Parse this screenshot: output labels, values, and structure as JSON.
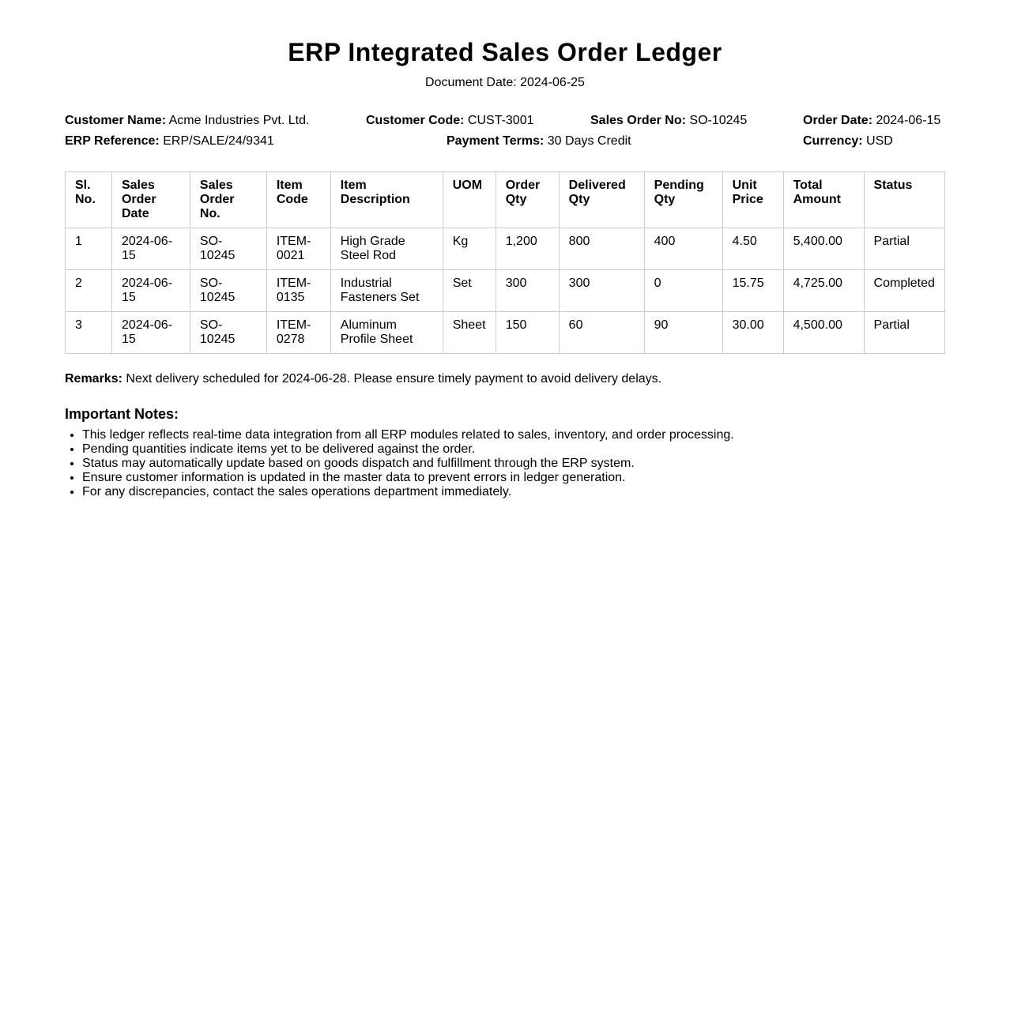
{
  "title": "ERP Integrated Sales Order Ledger",
  "document_date": "Document Date: 2024-06-25",
  "info": {
    "customer_name": {
      "label": "Customer Name:",
      "value": "Acme Industries Pvt. Ltd."
    },
    "customer_code": {
      "label": "Customer Code:",
      "value": "CUST-3001"
    },
    "sales_order_no": {
      "label": "Sales Order No:",
      "value": "SO-10245"
    },
    "order_date": {
      "label": "Order Date:",
      "value": "2024-06-15"
    },
    "erp_reference": {
      "label": "ERP Reference:",
      "value": "ERP/SALE/24/9341"
    },
    "payment_terms": {
      "label": "Payment Terms:",
      "value": "30 Days Credit"
    },
    "currency": {
      "label": "Currency:",
      "value": "USD"
    }
  },
  "table": {
    "headers": [
      "Sl. No.",
      "Sales Order Date",
      "Sales Order No.",
      "Item Code",
      "Item Description",
      "UOM",
      "Order Qty",
      "Delivered Qty",
      "Pending Qty",
      "Unit Price",
      "Total Amount",
      "Status"
    ],
    "rows": [
      [
        "1",
        "2024-06-15",
        "SO-10245",
        "ITEM-0021",
        "High Grade Steel Rod",
        "Kg",
        "1,200",
        "800",
        "400",
        "4.50",
        "5,400.00",
        "Partial"
      ],
      [
        "2",
        "2024-06-15",
        "SO-10245",
        "ITEM-0135",
        "Industrial Fasteners Set",
        "Set",
        "300",
        "300",
        "0",
        "15.75",
        "4,725.00",
        "Completed"
      ],
      [
        "3",
        "2024-06-15",
        "SO-10245",
        "ITEM-0278",
        "Aluminum Profile Sheet",
        "Sheet",
        "150",
        "60",
        "90",
        "30.00",
        "4,500.00",
        "Partial"
      ]
    ]
  },
  "remarks": {
    "label": "Remarks:",
    "text": "Next delivery scheduled for 2024-06-28. Please ensure timely payment to avoid delivery delays."
  },
  "notes": {
    "heading": "Important Notes:",
    "items": [
      "This ledger reflects real-time data integration from all ERP modules related to sales, inventory, and order processing.",
      "Pending quantities indicate items yet to be delivered against the order.",
      "Status may automatically update based on goods dispatch and fulfillment through the ERP system.",
      "Ensure customer information is updated in the master data to prevent errors in ledger generation.",
      "For any discrepancies, contact the sales operations department immediately."
    ]
  }
}
